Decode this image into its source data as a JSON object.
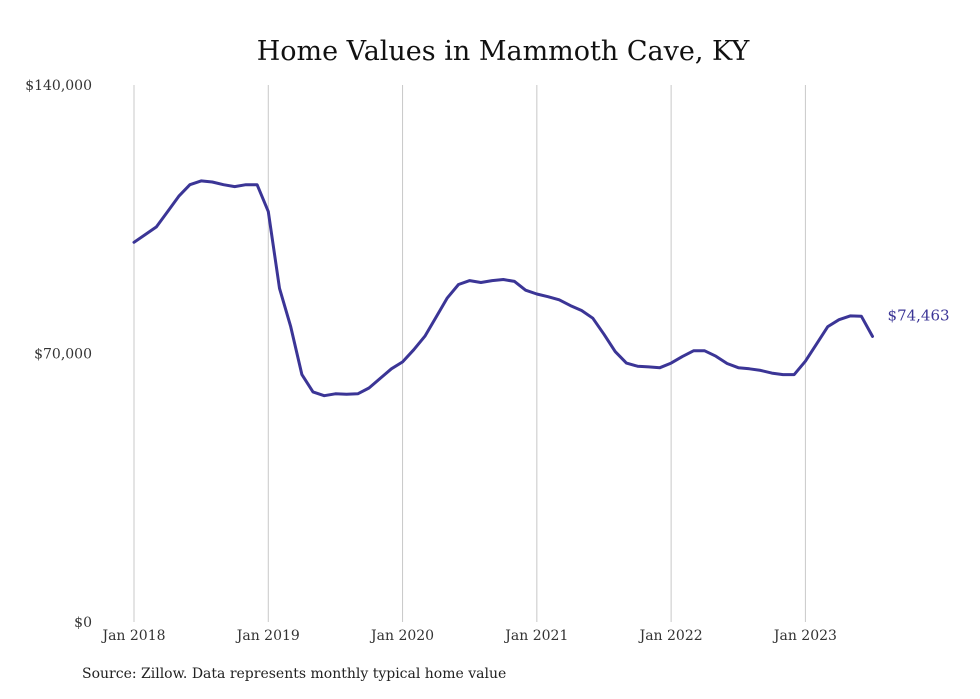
{
  "chart_data": {
    "type": "line",
    "title": "Home Values in Mammoth Cave, KY",
    "xlabel": "",
    "ylabel": "",
    "ylim": [
      0,
      140000
    ],
    "y_ticks": [
      {
        "value": 0,
        "label": "$0"
      },
      {
        "value": 70000,
        "label": "$70,000"
      },
      {
        "value": 140000,
        "label": "$140,000"
      }
    ],
    "x_ticks": [
      {
        "index": 0,
        "label": "Jan 2018"
      },
      {
        "index": 12,
        "label": "Jan 2019"
      },
      {
        "index": 24,
        "label": "Jan 2020"
      },
      {
        "index": 36,
        "label": "Jan 2021"
      },
      {
        "index": 48,
        "label": "Jan 2022"
      },
      {
        "index": 60,
        "label": "Jan 2023"
      }
    ],
    "x_range": [
      0,
      66
    ],
    "grid": "vertical",
    "line_color": "#3b3596",
    "end_label": "$74,463",
    "series": [
      {
        "values": [
          99000,
          101000,
          103000,
          107000,
          111000,
          114000,
          115000,
          114700,
          114000,
          113500,
          114000,
          114000,
          107000,
          87000,
          77000,
          64500,
          60000,
          59000,
          59500,
          59400,
          59500,
          61000,
          63500,
          66000,
          67800,
          71000,
          74500,
          79500,
          84500,
          88000,
          89000,
          88500,
          89000,
          89300,
          88800,
          86500,
          85500,
          84800,
          84000,
          82500,
          81200,
          79200,
          75000,
          70500,
          67500,
          66700,
          66500,
          66300,
          67500,
          69200,
          70700,
          70700,
          69300,
          67400,
          66300,
          66000,
          65600,
          64900,
          64500,
          64500,
          68000,
          72500,
          77000,
          78800,
          79800,
          79700,
          74463
        ]
      }
    ]
  },
  "source_note": "Source: Zillow. Data represents monthly typical home value"
}
